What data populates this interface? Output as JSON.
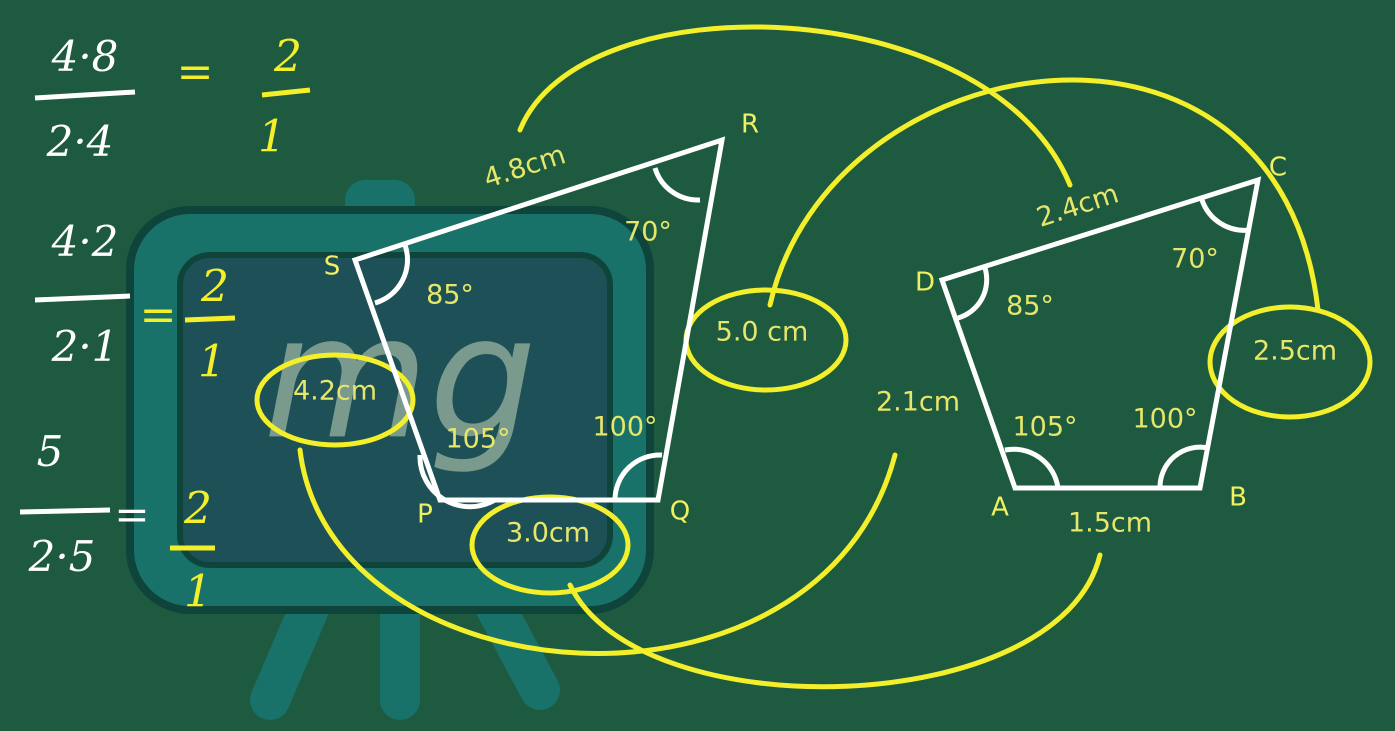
{
  "equations": [
    {
      "numerator": "4·8",
      "denominator": "2·4",
      "equals": "=",
      "result_numerator": "2",
      "result_denominator": "1"
    },
    {
      "numerator": "4·2",
      "denominator": "2·1",
      "equals": "=",
      "result_numerator": "2",
      "result_denominator": "1"
    },
    {
      "numerator": "5",
      "denominator": "2·5",
      "equals": "=",
      "result_numerator": "2",
      "result_denominator": "1"
    }
  ],
  "large_figure": {
    "vertices": [
      "P",
      "Q",
      "R",
      "S"
    ],
    "sides": [
      "4.8cm",
      "5.0 cm",
      "3.0cm",
      "4.2cm"
    ],
    "angles": [
      "70°",
      "85°",
      "105°",
      "100°"
    ]
  },
  "small_figure": {
    "vertices": [
      "A",
      "B",
      "C",
      "D"
    ],
    "sides": [
      "2.4cm",
      "2.5cm",
      "1.5cm",
      "2.1cm"
    ],
    "angles": [
      "70°",
      "85°",
      "105°",
      "100°"
    ]
  },
  "watermark": "mg"
}
